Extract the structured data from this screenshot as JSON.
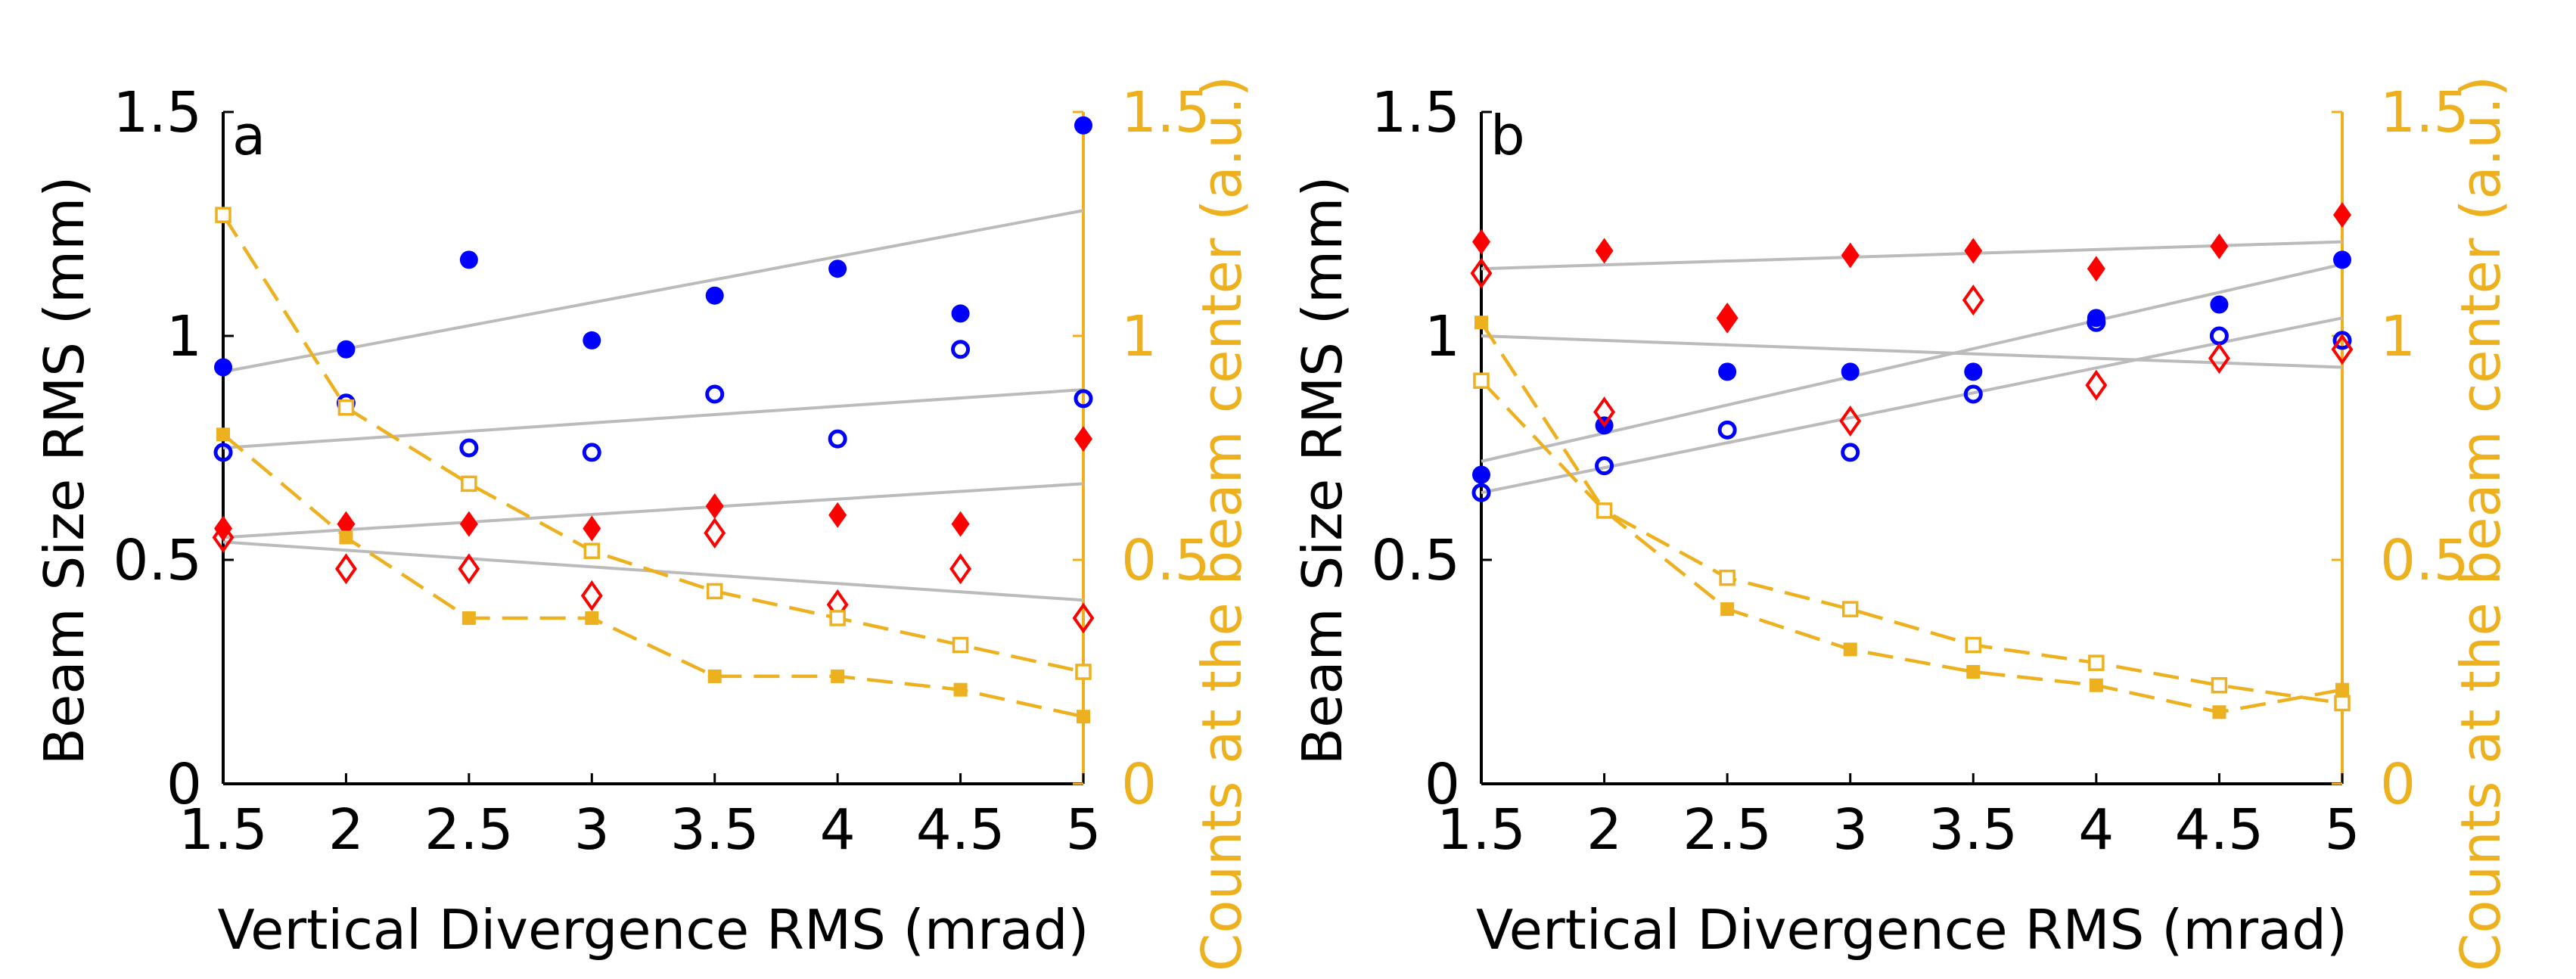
{
  "colors": {
    "left_axis": "#000000",
    "right_axis": "#EDB120",
    "circle": "#0000FF",
    "diamond": "#FF0000",
    "square": "#EDB120",
    "fit": "#BBBBBB"
  },
  "chart_data": [
    {
      "type": "scatter",
      "panel_label": "a",
      "xlabel": "Vertical Divergence RMS (mrad)",
      "ylabel_left": "Beam Size RMS (mm)",
      "ylabel_right": "Counts at the beam center (a.u.)",
      "xlim": [
        1.5,
        5
      ],
      "ylim_left": [
        0,
        1.5
      ],
      "ylim_right": [
        0,
        1.5
      ],
      "xticks": [
        "1.5",
        "2",
        "2.5",
        "3",
        "3.5",
        "4",
        "4.5",
        "5"
      ],
      "yticks_left": [
        "0",
        "0.5",
        "1",
        "1.5"
      ],
      "yticks_right": [
        "0",
        "0.5",
        "1",
        "1.5"
      ],
      "x": [
        1.5,
        2,
        2.5,
        3,
        3.5,
        4,
        4.5,
        5
      ],
      "series": [
        {
          "name": "blue filled circles",
          "axis": "left",
          "marker": "circle",
          "filled": true,
          "color": "#0000FF",
          "values": [
            0.93,
            0.97,
            1.17,
            0.99,
            1.09,
            1.15,
            1.05,
            1.47
          ]
        },
        {
          "name": "blue open circles",
          "axis": "left",
          "marker": "circle",
          "filled": false,
          "color": "#0000FF",
          "values": [
            0.74,
            0.85,
            0.75,
            0.74,
            0.87,
            0.77,
            0.97,
            0.86
          ]
        },
        {
          "name": "red filled diamonds",
          "axis": "left",
          "marker": "diamond",
          "filled": true,
          "color": "#FF0000",
          "values": [
            0.57,
            0.58,
            0.58,
            0.57,
            0.62,
            0.6,
            0.58,
            0.77
          ]
        },
        {
          "name": "red open diamonds",
          "axis": "left",
          "marker": "diamond",
          "filled": false,
          "color": "#FF0000",
          "values": [
            0.55,
            0.48,
            0.48,
            0.42,
            0.56,
            0.4,
            0.48,
            0.37
          ]
        },
        {
          "name": "yellow filled squares",
          "axis": "right",
          "marker": "square",
          "filled": true,
          "color": "#EDB120",
          "dashed_line": true,
          "values": [
            0.78,
            0.55,
            0.37,
            0.37,
            0.24,
            0.24,
            0.21,
            0.15
          ]
        },
        {
          "name": "yellow open squares",
          "axis": "right",
          "marker": "square",
          "filled": false,
          "color": "#EDB120",
          "dashed_line": true,
          "values": [
            1.27,
            0.84,
            0.67,
            0.52,
            0.43,
            0.37,
            0.31,
            0.25
          ]
        }
      ],
      "fits": [
        {
          "name": "fit blue filled",
          "x": [
            1.5,
            5
          ],
          "y": [
            0.92,
            1.28
          ]
        },
        {
          "name": "fit blue open",
          "x": [
            1.5,
            5
          ],
          "y": [
            0.75,
            0.88
          ]
        },
        {
          "name": "fit red filled",
          "x": [
            1.5,
            5
          ],
          "y": [
            0.55,
            0.67
          ]
        },
        {
          "name": "fit red open",
          "x": [
            1.5,
            5
          ],
          "y": [
            0.54,
            0.41
          ]
        }
      ]
    },
    {
      "type": "scatter",
      "panel_label": "b",
      "xlabel": "Vertical Divergence RMS (mrad)",
      "ylabel_left": "Beam Size RMS (mm)",
      "ylabel_right": "Counts at the beam center (a.u.)",
      "xlim": [
        1.5,
        5
      ],
      "ylim_left": [
        0,
        1.5
      ],
      "ylim_right": [
        0,
        1.5
      ],
      "xticks": [
        "1.5",
        "2",
        "2.5",
        "3",
        "3.5",
        "4",
        "4.5",
        "5"
      ],
      "yticks_left": [
        "0",
        "0.5",
        "1",
        "1.5"
      ],
      "yticks_right": [
        "0",
        "0.5",
        "1",
        "1.5"
      ],
      "x": [
        1.5,
        2,
        2.5,
        3,
        3.5,
        4,
        4.5,
        5
      ],
      "series": [
        {
          "name": "blue filled circles",
          "axis": "left",
          "marker": "circle",
          "filled": true,
          "color": "#0000FF",
          "values": [
            0.69,
            0.8,
            0.92,
            0.92,
            0.92,
            1.04,
            1.07,
            1.17
          ]
        },
        {
          "name": "blue open circles",
          "axis": "left",
          "marker": "circle",
          "filled": false,
          "color": "#0000FF",
          "values": [
            0.65,
            0.71,
            0.79,
            0.74,
            0.87,
            1.03,
            1.0,
            0.99
          ]
        },
        {
          "name": "red filled diamonds",
          "axis": "left",
          "marker": "diamond",
          "filled": true,
          "color": "#FF0000",
          "values": [
            1.21,
            1.19,
            1.04,
            1.18,
            1.19,
            1.15,
            1.2,
            1.27
          ]
        },
        {
          "name": "red open diamonds",
          "axis": "left",
          "marker": "diamond",
          "filled": false,
          "color": "#FF0000",
          "values": [
            1.14,
            0.83,
            1.04,
            0.81,
            1.08,
            0.89,
            0.95,
            0.97
          ]
        },
        {
          "name": "yellow filled squares",
          "axis": "right",
          "marker": "square",
          "filled": true,
          "color": "#EDB120",
          "dashed_line": true,
          "values": [
            1.03,
            0.61,
            0.39,
            0.3,
            0.25,
            0.22,
            0.16,
            0.21
          ]
        },
        {
          "name": "yellow open squares",
          "axis": "right",
          "marker": "square",
          "filled": false,
          "color": "#EDB120",
          "dashed_line": true,
          "values": [
            0.9,
            0.61,
            0.46,
            0.39,
            0.31,
            0.27,
            0.22,
            0.18
          ]
        }
      ],
      "fits": [
        {
          "name": "fit red filled",
          "x": [
            1.5,
            5
          ],
          "y": [
            1.15,
            1.21
          ]
        },
        {
          "name": "fit red open",
          "x": [
            1.5,
            5
          ],
          "y": [
            1.0,
            0.93
          ]
        },
        {
          "name": "fit blue filled",
          "x": [
            1.5,
            5
          ],
          "y": [
            0.72,
            1.16
          ]
        },
        {
          "name": "fit blue open",
          "x": [
            1.5,
            5
          ],
          "y": [
            0.65,
            1.04
          ]
        }
      ]
    }
  ]
}
